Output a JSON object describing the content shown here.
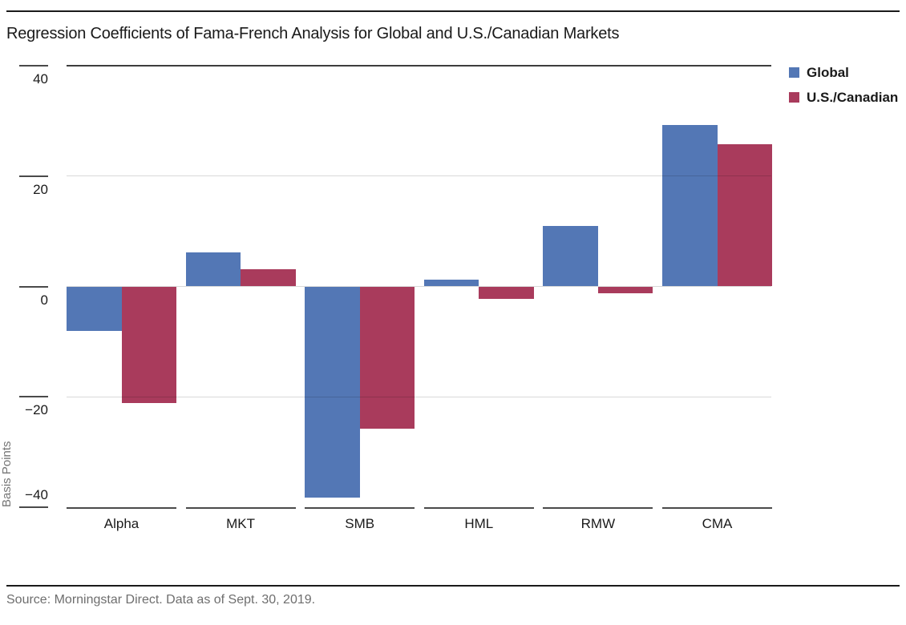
{
  "chart_data": {
    "type": "bar",
    "title": "Regression Coefficients of Fama-French Analysis for Global and U.S./Canadian Markets",
    "categories": [
      "Alpha",
      "MKT",
      "SMB",
      "HML",
      "RMW",
      "CMA"
    ],
    "series": [
      {
        "name": "Global",
        "color": "#5377B5",
        "values": [
          -8.0,
          6.1,
          -38.3,
          1.2,
          10.9,
          29.2
        ]
      },
      {
        "name": "U.S./Canadian",
        "color": "#A93B5C",
        "values": [
          -21.1,
          3.1,
          -25.8,
          -2.3,
          -1.3,
          25.7
        ]
      }
    ],
    "xlabel": "",
    "ylabel": "Basis Points",
    "ylim": [
      -40,
      40
    ],
    "yticks": [
      40,
      20,
      0,
      -20,
      -40
    ],
    "legend_position": "top-right",
    "grid": "horizontal",
    "colors": {
      "grid_light": "#d8d8d8",
      "grid_top_dark": "#3d3d3d",
      "axis": "#4a4a4a",
      "tick_label": "#1a1a1a",
      "y_axis_title": "#757575"
    }
  },
  "footer": {
    "source": "Source: Morningstar Direct. Data as of Sept. 30, 2019."
  }
}
